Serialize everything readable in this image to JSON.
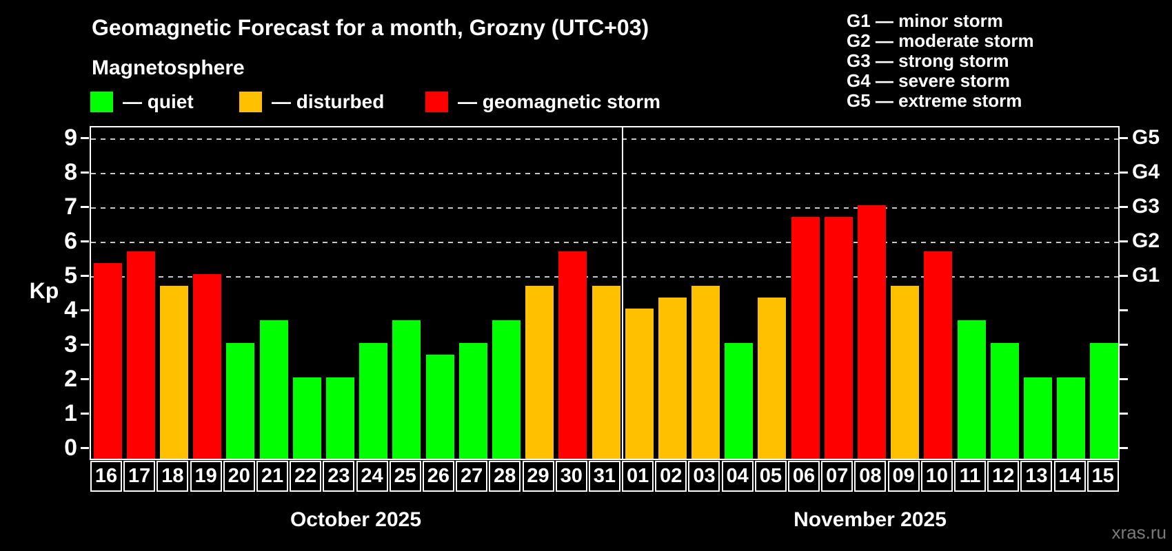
{
  "header": {
    "title": "Geomagnetic Forecast for a month, Grozny (UTC+03)",
    "subtitle": "Magnetosphere"
  },
  "legend": {
    "items": [
      {
        "state": "quiet",
        "label": "— quiet"
      },
      {
        "state": "disturbed",
        "label": "— disturbed"
      },
      {
        "state": "storm",
        "label": "— geomagnetic storm"
      }
    ]
  },
  "storm_scale_legend": [
    "G1 — minor storm",
    "G2 — moderate storm",
    "G3 — strong storm",
    "G4 — severe storm",
    "G5 — extreme storm"
  ],
  "watermark": "xras.ru",
  "chart_data": {
    "type": "bar",
    "title": "Geomagnetic Forecast for a month, Grozny (UTC+03)",
    "subtitle": "Magnetosphere",
    "xlabel": "",
    "ylabel": "Kp",
    "ylim": [
      -0.36,
      9.34
    ],
    "grid": "dashed horizontal lines at Kp 5-9 only",
    "kp_axis_ticks": [
      0,
      1,
      2,
      3,
      4,
      5,
      6,
      7,
      8,
      9
    ],
    "g_levels": [
      {
        "label": "G1",
        "kp": 5
      },
      {
        "label": "G2",
        "kp": 6
      },
      {
        "label": "G3",
        "kp": 7
      },
      {
        "label": "G4",
        "kp": 8
      },
      {
        "label": "G5",
        "kp": 9
      }
    ],
    "grid_kp_levels": [
      5,
      6,
      7,
      8,
      9
    ],
    "state_colors": {
      "quiet": "#00FF00",
      "disturbed": "#FFC000",
      "storm": "#FF0000"
    },
    "months": [
      {
        "label": "October 2025",
        "bars": [
          {
            "day": "16",
            "kp": 5.33,
            "state": "storm"
          },
          {
            "day": "17",
            "kp": 5.67,
            "state": "storm"
          },
          {
            "day": "18",
            "kp": 4.67,
            "state": "disturbed"
          },
          {
            "day": "19",
            "kp": 5.0,
            "state": "storm"
          },
          {
            "day": "20",
            "kp": 3.0,
            "state": "quiet"
          },
          {
            "day": "21",
            "kp": 3.67,
            "state": "quiet"
          },
          {
            "day": "22",
            "kp": 2.0,
            "state": "quiet"
          },
          {
            "day": "23",
            "kp": 2.0,
            "state": "quiet"
          },
          {
            "day": "24",
            "kp": 3.0,
            "state": "quiet"
          },
          {
            "day": "25",
            "kp": 3.67,
            "state": "quiet"
          },
          {
            "day": "26",
            "kp": 2.67,
            "state": "quiet"
          },
          {
            "day": "27",
            "kp": 3.0,
            "state": "quiet"
          },
          {
            "day": "28",
            "kp": 3.67,
            "state": "quiet"
          },
          {
            "day": "29",
            "kp": 4.67,
            "state": "disturbed"
          },
          {
            "day": "30",
            "kp": 5.67,
            "state": "storm"
          },
          {
            "day": "31",
            "kp": 4.67,
            "state": "disturbed"
          }
        ]
      },
      {
        "label": "November 2025",
        "bars": [
          {
            "day": "01",
            "kp": 4.0,
            "state": "disturbed"
          },
          {
            "day": "02",
            "kp": 4.33,
            "state": "disturbed"
          },
          {
            "day": "03",
            "kp": 4.67,
            "state": "disturbed"
          },
          {
            "day": "04",
            "kp": 3.0,
            "state": "quiet"
          },
          {
            "day": "05",
            "kp": 4.33,
            "state": "disturbed"
          },
          {
            "day": "06",
            "kp": 6.67,
            "state": "storm"
          },
          {
            "day": "07",
            "kp": 6.67,
            "state": "storm"
          },
          {
            "day": "08",
            "kp": 7.0,
            "state": "storm"
          },
          {
            "day": "09",
            "kp": 4.67,
            "state": "disturbed"
          },
          {
            "day": "10",
            "kp": 5.67,
            "state": "storm"
          },
          {
            "day": "11",
            "kp": 3.67,
            "state": "quiet"
          },
          {
            "day": "12",
            "kp": 3.0,
            "state": "quiet"
          },
          {
            "day": "13",
            "kp": 2.0,
            "state": "quiet"
          },
          {
            "day": "14",
            "kp": 2.0,
            "state": "quiet"
          },
          {
            "day": "15",
            "kp": 3.0,
            "state": "quiet"
          }
        ]
      }
    ]
  }
}
